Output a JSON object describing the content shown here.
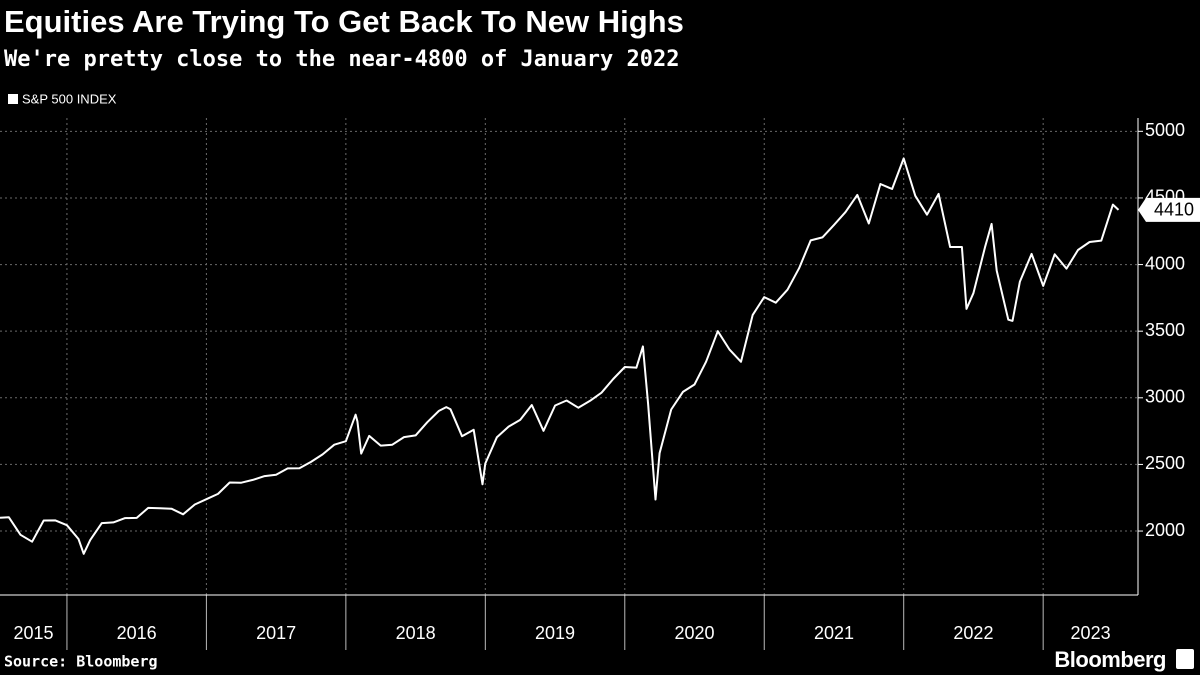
{
  "chart_data": {
    "type": "line",
    "title": "Equities Are Trying To Get Back To New Highs",
    "subtitle": "We're pretty close to the near-4800 of January 2022",
    "source": "Source: Bloomberg",
    "brand": "Bloomberg",
    "x": [
      2015.52,
      2015.583,
      2015.667,
      2015.75,
      2015.833,
      2015.917,
      2016.0,
      2016.083,
      2016.12,
      2016.167,
      2016.25,
      2016.333,
      2016.417,
      2016.5,
      2016.583,
      2016.667,
      2016.75,
      2016.833,
      2016.917,
      2017.0,
      2017.083,
      2017.167,
      2017.25,
      2017.333,
      2017.417,
      2017.5,
      2017.583,
      2017.667,
      2017.75,
      2017.833,
      2017.917,
      2018.0,
      2018.07,
      2018.083,
      2018.11,
      2018.167,
      2018.25,
      2018.333,
      2018.417,
      2018.5,
      2018.583,
      2018.667,
      2018.72,
      2018.75,
      2018.833,
      2018.917,
      2018.98,
      2019.0,
      2019.083,
      2019.167,
      2019.25,
      2019.333,
      2019.417,
      2019.5,
      2019.583,
      2019.667,
      2019.75,
      2019.833,
      2019.917,
      2020.0,
      2020.083,
      2020.13,
      2020.167,
      2020.22,
      2020.25,
      2020.333,
      2020.417,
      2020.5,
      2020.583,
      2020.667,
      2020.75,
      2020.833,
      2020.917,
      2021.0,
      2021.083,
      2021.167,
      2021.25,
      2021.333,
      2021.417,
      2021.5,
      2021.583,
      2021.667,
      2021.75,
      2021.833,
      2021.917,
      2022.0,
      2022.083,
      2022.167,
      2022.25,
      2022.333,
      2022.417,
      2022.45,
      2022.5,
      2022.583,
      2022.63,
      2022.667,
      2022.75,
      2022.78,
      2022.833,
      2022.917,
      2023.0,
      2023.083,
      2023.167,
      2023.25,
      2023.333,
      2023.417,
      2023.5,
      2023.54
    ],
    "series": [
      {
        "name": "S&P 500 INDEX",
        "color": "#ffffff",
        "values": [
          2100,
          2104,
          1972,
          1920,
          2079,
          2080,
          2044,
          1940,
          1829,
          1932,
          2060,
          2065,
          2097,
          2099,
          2174,
          2171,
          2168,
          2126,
          2199,
          2239,
          2279,
          2364,
          2363,
          2384,
          2412,
          2423,
          2470,
          2472,
          2519,
          2575,
          2648,
          2674,
          2873,
          2824,
          2581,
          2714,
          2641,
          2648,
          2705,
          2718,
          2816,
          2902,
          2930,
          2914,
          2712,
          2760,
          2351,
          2507,
          2704,
          2784,
          2834,
          2946,
          2752,
          2942,
          2980,
          2926,
          2977,
          3038,
          3141,
          3231,
          3226,
          3386,
          2954,
          2237,
          2585,
          2912,
          3044,
          3100,
          3271,
          3500,
          3363,
          3270,
          3622,
          3756,
          3714,
          3811,
          3973,
          4181,
          4204,
          4298,
          4395,
          4523,
          4308,
          4605,
          4567,
          4797,
          4516,
          4374,
          4530,
          4132,
          4132,
          3667,
          3785,
          4130,
          4305,
          3955,
          3586,
          3577,
          3872,
          4080,
          3840,
          4077,
          3970,
          4109,
          4169,
          4180,
          4450,
          4410
        ]
      }
    ],
    "xlim": [
      2015.52,
      2023.68
    ],
    "xticks": [
      2016,
      2017,
      2018,
      2019,
      2020,
      2021,
      2022,
      2023
    ],
    "year_labels": [
      2015,
      2016,
      2017,
      2018,
      2019,
      2020,
      2021,
      2022,
      2023
    ],
    "ylim": [
      1520,
      5100
    ],
    "yticks": [
      2000,
      2500,
      3000,
      3500,
      4000,
      4500,
      5000
    ],
    "grid": true
  }
}
